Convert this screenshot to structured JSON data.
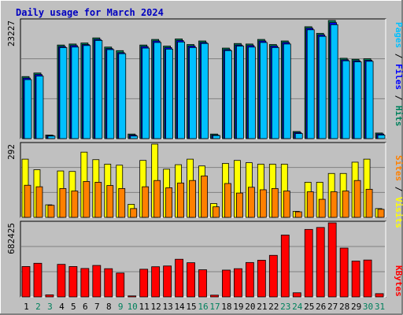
{
  "chart_data": [
    {
      "type": "bar",
      "panel": "hits_files_pages",
      "title": "Daily usage for March 2024",
      "ymax_label": "23227",
      "ylim": [
        0,
        23227
      ],
      "categories": [
        "1",
        "2",
        "3",
        "4",
        "5",
        "6",
        "7",
        "8",
        "9",
        "10",
        "11",
        "12",
        "13",
        "14",
        "15",
        "16",
        "17",
        "18",
        "19",
        "20",
        "21",
        "22",
        "23",
        "24",
        "25",
        "26",
        "27",
        "28",
        "29",
        "30",
        "31"
      ],
      "weekend_days": [
        "2",
        "3",
        "9",
        "10",
        "16",
        "17",
        "23",
        "24",
        "30",
        "31"
      ],
      "colors": {
        "hits": "#00805c",
        "files": "#0000ff",
        "pages": "#00c0ff",
        "weekend_tick": "#00805c",
        "weekday_tick": "#000000"
      },
      "right_label": {
        "pages": "Pages",
        "sep1": " / ",
        "files": "Files",
        "sep2": " / ",
        "hits": "Hits"
      },
      "series": [
        {
          "name": "Hits",
          "values": [
            12200,
            12900,
            700,
            18400,
            18600,
            18800,
            19800,
            18000,
            17300,
            900,
            18400,
            19500,
            18200,
            19600,
            18500,
            19200,
            900,
            17800,
            18700,
            18600,
            19500,
            18500,
            19200,
            1400,
            22000,
            20700,
            23227,
            15800,
            15600,
            15700,
            1100
          ]
        },
        {
          "name": "Files",
          "values": [
            11900,
            12600,
            600,
            18100,
            18300,
            18500,
            19500,
            17700,
            16900,
            700,
            18100,
            19200,
            17900,
            19300,
            18200,
            18900,
            700,
            17500,
            18400,
            18300,
            19200,
            18200,
            18900,
            1200,
            21700,
            20400,
            22800,
            15500,
            15300,
            15400,
            900
          ]
        },
        {
          "name": "Pages",
          "values": [
            11600,
            12300,
            500,
            17900,
            18000,
            18300,
            19300,
            17500,
            16700,
            500,
            17800,
            18900,
            17600,
            19000,
            17900,
            18700,
            600,
            17300,
            18200,
            18000,
            18900,
            17900,
            18600,
            1000,
            21400,
            20100,
            22400,
            15300,
            15100,
            15200,
            700
          ]
        }
      ]
    },
    {
      "type": "bar",
      "panel": "visits_sites",
      "ymax_label": "292",
      "ylim": [
        0,
        292
      ],
      "colors": {
        "visits": "#ffff00",
        "sites": "#ff8000"
      },
      "right_label": {
        "sites": "Sites",
        "sep": " / ",
        "visits": "Visits"
      },
      "series": [
        {
          "name": "Visits",
          "values": [
            232,
            190,
            50,
            185,
            183,
            260,
            230,
            212,
            208,
            52,
            227,
            292,
            192,
            210,
            232,
            205,
            55,
            215,
            227,
            218,
            212,
            212,
            212,
            24,
            140,
            140,
            175,
            175,
            220,
            232,
            35
          ]
        },
        {
          "name": "Sites",
          "values": [
            128,
            122,
            48,
            115,
            105,
            143,
            140,
            127,
            115,
            35,
            122,
            147,
            118,
            137,
            147,
            165,
            42,
            135,
            97,
            120,
            110,
            115,
            105,
            22,
            102,
            72,
            102,
            105,
            147,
            112,
            32
          ]
        }
      ]
    },
    {
      "type": "bar",
      "panel": "kbytes",
      "ymax_label": "682425",
      "ylim": [
        0,
        682425
      ],
      "colors": {
        "kbytes": "#ff0000"
      },
      "right_label": {
        "kbytes": "KBytes"
      },
      "series": [
        {
          "name": "KBytes",
          "values": [
            280000,
            310000,
            19000,
            300000,
            280000,
            262000,
            290000,
            260000,
            220000,
            9000,
            255000,
            278000,
            285000,
            347000,
            315000,
            250000,
            16000,
            247000,
            260000,
            317000,
            338000,
            383000,
            570000,
            38000,
            622000,
            640000,
            682425,
            450000,
            330000,
            340000,
            30000
          ]
        }
      ]
    }
  ]
}
